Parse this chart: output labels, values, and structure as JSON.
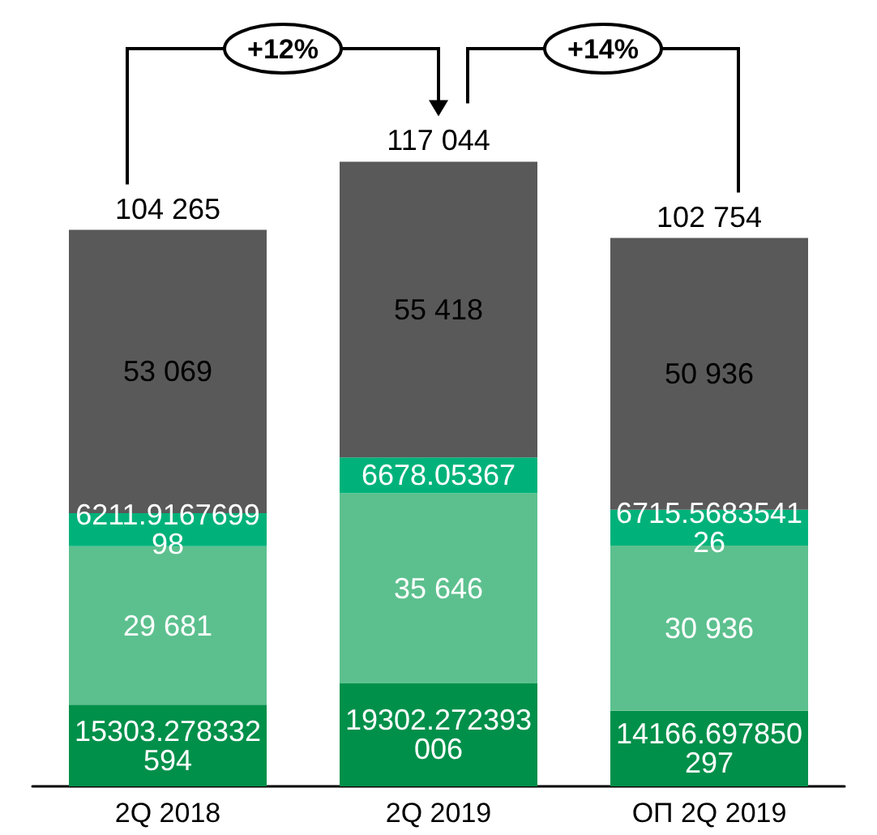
{
  "chart_data": {
    "type": "bar",
    "stacked": true,
    "categories": [
      "2Q 2018",
      "2Q 2019",
      "ОП 2Q 2019"
    ],
    "series": [
      {
        "color": "#00904a",
        "values": [
          15303.278332594,
          19302.272393006,
          14166.697850297
        ],
        "value_labels": [
          "15303.278332594",
          "19302.272393006",
          "14166.697850297"
        ]
      },
      {
        "color": "#5cc08e",
        "values": [
          29681,
          35646,
          30936
        ],
        "value_labels": [
          "29 681",
          "35 646",
          "30 936"
        ]
      },
      {
        "color": "#00b27a",
        "values": [
          6211.916769998,
          6678.05367,
          6715.568354126
        ],
        "value_labels": [
          "6211.916769998",
          "6678.05367",
          "6715.568354126"
        ]
      },
      {
        "color": "#595959",
        "values": [
          53069,
          55418,
          50936
        ],
        "value_labels": [
          "53 069",
          "55 418",
          "50 936"
        ]
      }
    ],
    "totals": [
      "104 265",
      "117 044",
      "102 754"
    ],
    "annotations": [
      "+12%",
      "+14%"
    ]
  }
}
